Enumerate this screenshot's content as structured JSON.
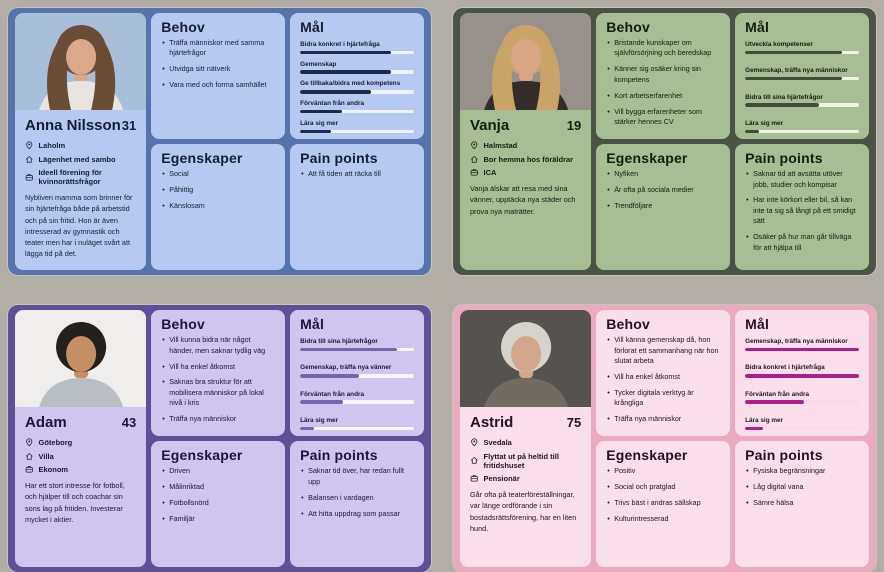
{
  "page": {
    "background": "#b2ada5"
  },
  "section_icons": [
    "location-icon",
    "home-icon",
    "work-icon"
  ],
  "personas": [
    {
      "name": "Anna Nilsson",
      "age": "31",
      "titles": {
        "needs": "Behov",
        "goals": "Mål",
        "traits": "Egenskaper",
        "pain": "Pain points"
      },
      "facts": [
        {
          "icon": "location-icon",
          "text": "Laholm"
        },
        {
          "icon": "home-icon",
          "text": "Lägenhet med sambo"
        },
        {
          "icon": "work-icon",
          "text": "Ideell förening för kvinnorättsfrågor"
        }
      ],
      "bio": "Nybliven mamma som brinner för sin hjärtefråga både på arbetstid och på sin fritid. Hon är även intresserad av gymnastik och teater men har i nuläget svårt att lägga tid på det.",
      "needs": [
        "Träffa människor med samma hjärtefrågor",
        "Utvidga sitt nätverk",
        "Vara med och forma samhället"
      ],
      "goals": [
        {
          "label": "Bidra konkret i hjärtefråga",
          "pct": 80
        },
        {
          "label": "Gemenskap",
          "pct": 80
        },
        {
          "label": "Ge tillbaka/bidra med kompetens",
          "pct": 62
        },
        {
          "label": "Förväntan från andra",
          "pct": 37
        },
        {
          "label": "Lära sig mer",
          "pct": 27
        }
      ],
      "traits": [
        "Social",
        "Påhittig",
        "Känslosam"
      ],
      "pain": [
        "Att få tiden att räcka till"
      ],
      "theme": {
        "board": "#5673ab",
        "panel": "#b7c9f3",
        "text": "#151d33",
        "bar_fill": "#1d2a4d",
        "bar_track": "#eef2fb"
      },
      "photo": {
        "bg": "#a9bfd9",
        "hair": "#6a4d36",
        "skin": "#dba88a",
        "shirt": "#e8e4df",
        "hair_style": "long"
      }
    },
    {
      "name": "Vanja",
      "age": "19",
      "titles": {
        "needs": "Behov",
        "goals": "Mål",
        "traits": "Egenskaper",
        "pain": "Pain points"
      },
      "facts": [
        {
          "icon": "location-icon",
          "text": "Halmstad"
        },
        {
          "icon": "home-icon",
          "text": "Bor hemma hos föräldrar"
        },
        {
          "icon": "work-icon",
          "text": "ICA"
        }
      ],
      "bio": "Vanja älskar att resa med sina vänner, upptäcka nya städer och prova nya maträtter.",
      "needs": [
        "Bristande kunskaper om självförsörjning och beredskap",
        "Känner sig osäker kring sin kompetens",
        "Kort arbetserfarenhet",
        "Vill bygga erfarenheter som stärker hennes CV"
      ],
      "goals": [
        {
          "label": "Utveckla kompetenser",
          "pct": 85
        },
        {
          "label": "Gemenskap, träffa nya människor",
          "pct": 85
        },
        {
          "label": "Bidra till sina hjärtefrågor",
          "pct": 65
        },
        {
          "label": "Lära sig mer",
          "pct": 12
        }
      ],
      "traits": [
        "Nyfiken",
        "Är ofta på sociala medier",
        "Trendföljare"
      ],
      "pain": [
        "Saknar tid att avsätta utöver jobb, studier och kompisar",
        "Har inte körkort eller bil, så kan inte ta sig så långt på ett smidigt sätt",
        "Osäker på hur man går tillväga för att hjälpa till"
      ],
      "theme": {
        "board": "#4a5345",
        "panel": "#a6bd96",
        "text": "#141d12",
        "bar_fill": "#404d3a",
        "bar_track": "#f2f1e6"
      },
      "photo": {
        "bg": "#98908a",
        "hair": "#c9a368",
        "skin": "#d9a583",
        "shirt": "#322d29",
        "hair_style": "long"
      }
    },
    {
      "name": "Adam",
      "age": "43",
      "titles": {
        "needs": "Behov",
        "goals": "Mål",
        "traits": "Egenskaper",
        "pain": "Pain points"
      },
      "facts": [
        {
          "icon": "location-icon",
          "text": "Göteborg"
        },
        {
          "icon": "home-icon",
          "text": "Villa"
        },
        {
          "icon": "work-icon",
          "text": "Ekonom"
        }
      ],
      "bio": "Har ett stort intresse för fotboll, och hjälper till och coachar sin sons lag på fritiden. Investerar mycket i aktier.",
      "needs": [
        "Vill kunna bidra när något händer, men saknar tydlig väg",
        "Vill ha enkel åtkomst",
        "Saknas bra struktur för att mobilisera människor på lokal nivå i kris",
        "Träffa nya människor"
      ],
      "goals": [
        {
          "label": "Bidra till sina hjärtefrågor",
          "pct": 85
        },
        {
          "label": "Gemenskap, träffa nya vänner",
          "pct": 52
        },
        {
          "label": "Förväntan från andra",
          "pct": 38
        },
        {
          "label": "Lära sig mer",
          "pct": 12
        }
      ],
      "traits": [
        "Driven",
        "Målinriktad",
        "Fotbollsnörd",
        "Familjär"
      ],
      "pain": [
        "Saknar tid över, har redan fullt upp",
        "Balansen i vardagen",
        "Att hitta uppdrag som passar"
      ],
      "theme": {
        "board": "#5d5096",
        "panel": "#cfc5f0",
        "text": "#1c1340",
        "bar_fill": "#7663ae",
        "bar_track": "#f7f5fd"
      },
      "photo": {
        "bg": "#efeeec",
        "hair": "#26201c",
        "skin": "#c68f63",
        "shirt": "#b9bec5",
        "hair_style": "short"
      }
    },
    {
      "name": "Astrid",
      "age": "75",
      "titles": {
        "needs": "Behov",
        "goals": "Mål",
        "traits": "Egenskaper",
        "pain": "Pain points"
      },
      "facts": [
        {
          "icon": "location-icon",
          "text": "Svedala"
        },
        {
          "icon": "home-icon",
          "text": "Flyttat ut på heltid till fritidshuset"
        },
        {
          "icon": "work-icon",
          "text": "Pensionär"
        }
      ],
      "bio": "Går ofta på teaterföreställningar, var länge ordförande i sin bostadsrättsförening, har en liten hund.",
      "needs": [
        "Vill känna gemenskap då, hon förlorat ett sammanhang när hon slutat arbeta",
        "Vill ha enkel åtkomst",
        "Tycker digitala verktyg är krångliga",
        "Träffa nya människor"
      ],
      "goals": [
        {
          "label": "Gemenskap, träffa nya människor",
          "pct": 100
        },
        {
          "label": "Bidra konkret i hjärtefråga",
          "pct": 100
        },
        {
          "label": "Förväntan från andra",
          "pct": 52
        },
        {
          "label": "Lära sig mer",
          "pct": 16
        }
      ],
      "traits": [
        "Positiv",
        "Social och pratglad",
        "Trivs bäst i andras sällskap",
        "Kulturintresserad"
      ],
      "pain": [
        "Fysiska begränsningar",
        "Låg digital vana",
        "Sämre hälsa"
      ],
      "theme": {
        "board": "#ecaac0",
        "panel": "#fbdeeb",
        "text": "#241223",
        "bar_fill": "#b01e88",
        "bar_track": "#f8d9e8"
      },
      "photo": {
        "bg": "#565250",
        "hair": "#d6d2cc",
        "skin": "#d4a78c",
        "shirt": "#716b62",
        "hair_style": "short"
      }
    }
  ]
}
